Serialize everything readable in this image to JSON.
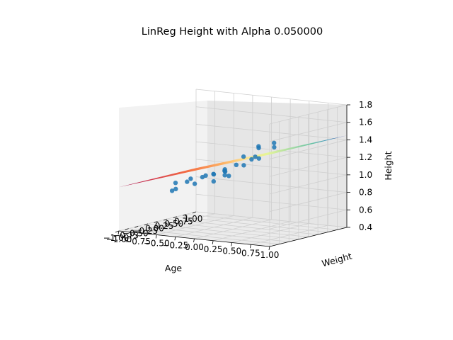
{
  "chart_data": {
    "type": "scatter",
    "title": "LinReg Height with Alpha 0.050000",
    "xlabel": "Age",
    "ylabel": "Weight",
    "zlabel": "Height",
    "xlim": [
      -1.0,
      1.0
    ],
    "ylim": [
      -1.0,
      1.0
    ],
    "zlim": [
      0.4,
      1.8
    ],
    "x_ticks": [
      "−1.00",
      "−0.75",
      "−0.50",
      "−0.25",
      "0.00",
      "0.25",
      "0.50",
      "0.75",
      "1.00"
    ],
    "y_ticks": [
      "−1.00",
      "−0.75",
      "−0.50",
      "−0.25",
      "0.00",
      "0.25",
      "0.50",
      "0.75",
      "1.00"
    ],
    "z_ticks": [
      "0.4",
      "0.6",
      "0.8",
      "1.0",
      "1.2",
      "1.4",
      "1.6",
      "1.8"
    ],
    "grid": true,
    "surface_colormap": "Spectral",
    "series": [
      {
        "kind": "scatter",
        "color": "#1f77b4",
        "points": [
          {
            "age": -0.5,
            "weight": -0.6,
            "height": 0.86
          },
          {
            "age": -0.4,
            "weight": -0.7,
            "height": 0.9
          },
          {
            "age": -0.3,
            "weight": -0.6,
            "height": 0.98
          },
          {
            "age": -0.3,
            "weight": -0.9,
            "height": 1.0
          },
          {
            "age": -0.25,
            "weight": -0.5,
            "height": 0.95
          },
          {
            "age": -0.2,
            "weight": -0.4,
            "height": 1.02
          },
          {
            "age": -0.15,
            "weight": -0.8,
            "height": 1.05
          },
          {
            "age": -0.1,
            "weight": -0.3,
            "height": 1.05
          },
          {
            "age": 0.0,
            "weight": -0.5,
            "height": 1.0
          },
          {
            "age": 0.0,
            "weight": -0.2,
            "height": 1.08
          },
          {
            "age": 0.05,
            "weight": -0.6,
            "height": 1.1
          },
          {
            "age": 0.1,
            "weight": -0.3,
            "height": 1.05
          },
          {
            "age": 0.1,
            "weight": -0.9,
            "height": 1.12
          },
          {
            "age": 0.15,
            "weight": -0.5,
            "height": 1.15
          },
          {
            "age": 0.2,
            "weight": -0.6,
            "height": 1.1
          },
          {
            "age": 0.25,
            "weight": -0.4,
            "height": 1.2
          },
          {
            "age": 0.3,
            "weight": -0.8,
            "height": 1.18
          },
          {
            "age": 0.35,
            "weight": -0.2,
            "height": 1.25
          },
          {
            "age": 0.4,
            "weight": -0.5,
            "height": 1.22
          },
          {
            "age": 0.45,
            "weight": -0.3,
            "height": 1.3
          },
          {
            "age": 0.5,
            "weight": -0.7,
            "height": 1.35
          },
          {
            "age": 0.55,
            "weight": -0.4,
            "height": 1.3
          },
          {
            "age": 0.6,
            "weight": -0.1,
            "height": 1.4
          },
          {
            "age": 0.65,
            "weight": -0.6,
            "height": 1.45
          },
          {
            "age": 0.7,
            "weight": -0.3,
            "height": 1.48
          },
          {
            "age": 0.75,
            "weight": -0.8,
            "height": 1.5
          }
        ]
      },
      {
        "kind": "surface",
        "description_color_from": "red",
        "description_color_to": "blue",
        "z_at_age_min": 0.9,
        "z_at_age_max": 1.45
      }
    ]
  }
}
